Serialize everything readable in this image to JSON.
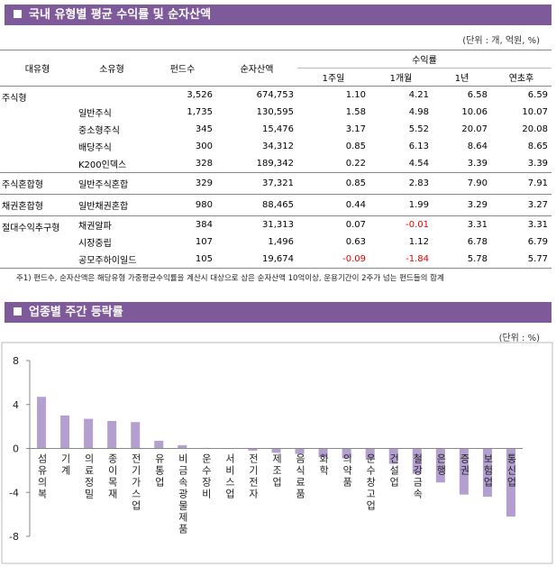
{
  "header": {
    "title": "국내 유형별 평균 수익률 및 순자산액",
    "unit": "(단위 : 개, 억원, %)"
  },
  "table": {
    "columns": [
      "대유형",
      "소유형",
      "펀드수",
      "순자산액"
    ],
    "return_group": "수익률",
    "return_columns": [
      "1주일",
      "1개월",
      "1년",
      "연초후"
    ],
    "groups": [
      {
        "name": "주식형",
        "rows": [
          [
            null,
            "3,526",
            "674,753",
            "1.10",
            "4.21",
            "6.58",
            "6.59"
          ],
          [
            "일반주식",
            "1,735",
            "130,595",
            "1.58",
            "4.98",
            "10.06",
            "10.07"
          ],
          [
            "중소형주식",
            "345",
            "15,476",
            "3.17",
            "5.52",
            "20.07",
            "20.08"
          ],
          [
            "배당주식",
            "300",
            "34,312",
            "0.85",
            "6.13",
            "8.64",
            "8.65"
          ],
          [
            "K200인덱스",
            "328",
            "189,342",
            "0.22",
            "4.54",
            "3.39",
            "3.39"
          ]
        ]
      },
      {
        "name": "주식혼합형",
        "rows": [
          [
            "일반주식혼합",
            "329",
            "37,321",
            "0.85",
            "2.83",
            "7.90",
            "7.91"
          ]
        ]
      },
      {
        "name": "채권혼합형",
        "rows": [
          [
            "일반채권혼합",
            "980",
            "88,465",
            "0.44",
            "1.99",
            "3.29",
            "3.27"
          ]
        ]
      },
      {
        "name": "절대수익추구형",
        "rows": [
          [
            "채권알파",
            "384",
            "31,313",
            "0.07",
            "-0.01",
            "3.31",
            "3.31"
          ],
          [
            "시장중립",
            "107",
            "1,496",
            "0.63",
            "1.12",
            "6.78",
            "6.79"
          ],
          [
            "공모주하이일드",
            "105",
            "19,674",
            "-0.09",
            "-1.84",
            "5.78",
            "5.77"
          ]
        ]
      }
    ]
  },
  "footnote": "주1) 펀드수, 순자산액은 해당유형 가중평균수익률을 계산시 대상으로 삼은 순자산액 10억이상, 운용기간이 2주가 넘는 펀드들의 합계",
  "chart_section": {
    "title": "업종별 주간 등락률",
    "unit": "(단위 : %)"
  },
  "chart_data": {
    "type": "bar",
    "categories": [
      "섬유의복",
      "기계",
      "의료정밀",
      "종이목재",
      "전기가스업",
      "유통업",
      "비금속광물제품",
      "운수장비",
      "서비스업",
      "전기전자",
      "제조업",
      "음식료품",
      "화학",
      "의약품",
      "운수창고업",
      "건설업",
      "철강금속",
      "은행",
      "증권",
      "보험업",
      "통신업"
    ],
    "values": [
      4.7,
      3.0,
      2.7,
      2.5,
      2.4,
      0.7,
      0.3,
      0.05,
      -0.05,
      -0.2,
      -0.4,
      -0.5,
      -0.8,
      -0.9,
      -1.0,
      -1.4,
      -2.3,
      -3.1,
      -4.2,
      -4.4,
      -6.2
    ],
    "color": "#b49fd0",
    "ylim": [
      -8,
      8
    ],
    "yticks": [
      -8,
      -4,
      0,
      4,
      8
    ]
  }
}
